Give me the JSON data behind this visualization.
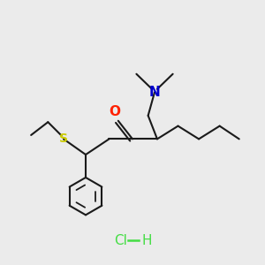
{
  "bg_color": "#ebebeb",
  "bond_color": "#1a1a1a",
  "S_color": "#cccc00",
  "O_color": "#ff2000",
  "N_color": "#0000cc",
  "HCl_color": "#44dd44",
  "line_width": 1.5,
  "fig_size": [
    3.0,
    3.0
  ],
  "dpi": 100,
  "xlim": [
    0,
    10
  ],
  "ylim": [
    0,
    10
  ]
}
